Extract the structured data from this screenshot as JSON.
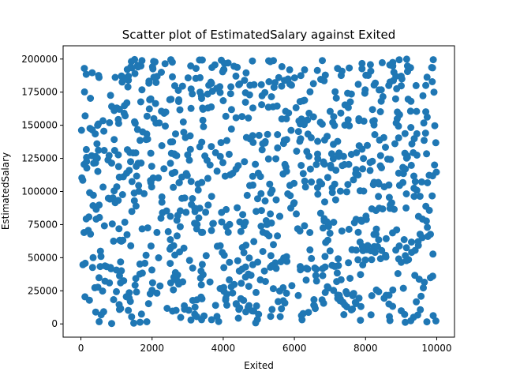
{
  "chart_data": {
    "type": "scatter",
    "title": "Scatter plot of EstimatedSalary against Exited",
    "xlabel": "Exited",
    "ylabel": "EstimatedSalary",
    "xlim": [
      -500,
      10500
    ],
    "ylim": [
      -10000,
      210000
    ],
    "xticks": [
      0,
      2000,
      4000,
      6000,
      8000,
      10000
    ],
    "yticks": [
      0,
      25000,
      50000,
      75000,
      100000,
      125000,
      150000,
      175000,
      200000
    ],
    "grid": false,
    "legend": "none",
    "marker_color": "#1f77b4",
    "points_note_seed": 20240513,
    "point_count": 1000
  }
}
